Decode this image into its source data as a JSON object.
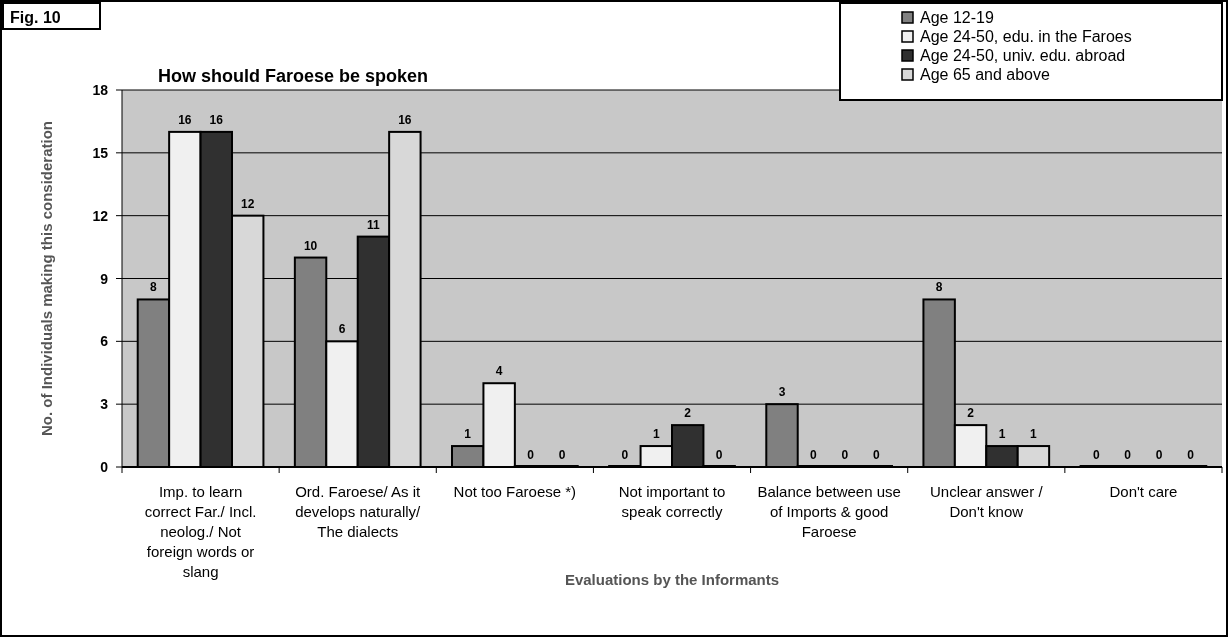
{
  "chart_data": {
    "type": "bar",
    "title": "How should Faroese be spoken",
    "xlabel": "Evaluations by the Informants",
    "ylabel": "No. of Individuals making this consideration",
    "annotations": [
      "Fig. 10"
    ],
    "categories": [
      "Imp. to learn correct Far./ Incl. neolog./ Not foreign words or slang",
      "Ord. Faroese/ As it develops naturally/ The dialects",
      "Not too Faroese *)",
      "Not important to speak correctly",
      "Balance between use of Imports & good Faroese",
      "Unclear answer / Don't know",
      "Don't care"
    ],
    "series": [
      {
        "name": "Age 12-19",
        "color": "#808080",
        "values": [
          8,
          10,
          1,
          0,
          3,
          8,
          0
        ]
      },
      {
        "name": "Age 24-50, edu. in the Faroes",
        "color": "#f0f0f0",
        "values": [
          16,
          6,
          4,
          1,
          0,
          2,
          0
        ]
      },
      {
        "name": "Age 24-50, univ. edu. abroad",
        "color": "#303030",
        "values": [
          16,
          11,
          0,
          2,
          0,
          1,
          0
        ]
      },
      {
        "name": "Age 65 and above",
        "color": "#d8d8d8",
        "values": [
          12,
          16,
          0,
          0,
          0,
          1,
          0
        ]
      }
    ],
    "ylim": [
      0,
      18
    ],
    "yticks": [
      0,
      3,
      6,
      9,
      12,
      15,
      18
    ],
    "grid": "y",
    "legend": "top right",
    "data_labels": true
  }
}
